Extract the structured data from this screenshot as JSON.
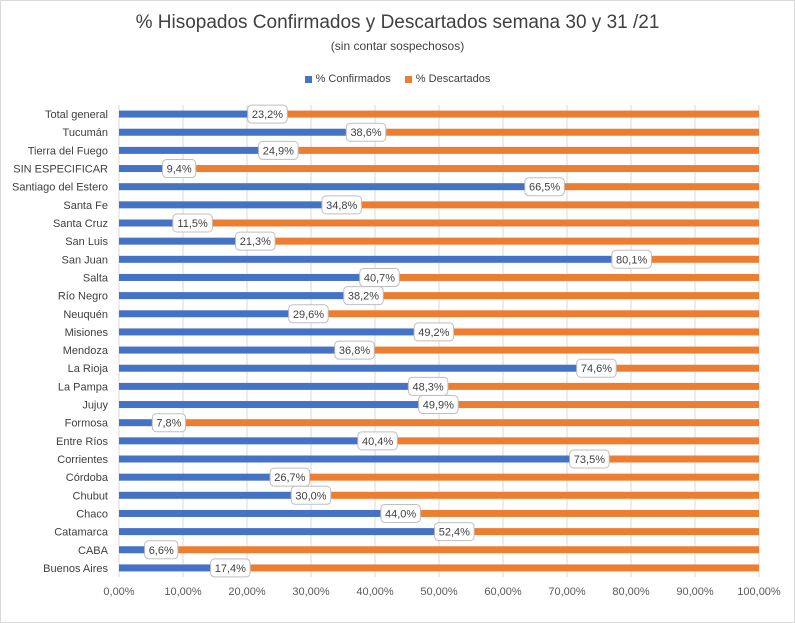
{
  "chart_data": {
    "type": "bar",
    "orientation": "horizontal",
    "stacked": true,
    "title": "% Hisopados  Confirmados  y  Descartados  semana  30 y 31 /21",
    "subtitle": "(sin contar sospechosos)",
    "legend_position": "top",
    "xlim": [
      0,
      100
    ],
    "xticks": [
      "0,00%",
      "10,00%",
      "20,00%",
      "30,00%",
      "40,00%",
      "50,00%",
      "60,00%",
      "70,00%",
      "80,00%",
      "90,00%",
      "100,00%"
    ],
    "grid": true,
    "colors": {
      "confirmados": "#4472c4",
      "descartados": "#ed7d31",
      "grid": "#d9d9d9"
    },
    "categories": [
      "Total general",
      "Tucumán",
      "Tierra del Fuego",
      "SIN ESPECIFICAR",
      "Santiago del Estero",
      "Santa Fe",
      "Santa Cruz",
      "San Luis",
      "San Juan",
      "Salta",
      "Río Negro",
      "Neuquén",
      "Misiones",
      "Mendoza",
      "La Rioja",
      "La Pampa",
      "Jujuy",
      "Formosa",
      "Entre Ríos",
      "Corrientes",
      "Córdoba",
      "Chubut",
      "Chaco",
      "Catamarca",
      "CABA",
      "Buenos Aires"
    ],
    "series": [
      {
        "name": "% Confirmados",
        "values": [
          23.2,
          38.6,
          24.9,
          9.4,
          66.5,
          34.8,
          11.5,
          21.3,
          80.1,
          40.7,
          38.2,
          29.6,
          49.2,
          36.8,
          74.6,
          48.3,
          49.9,
          7.8,
          40.4,
          73.5,
          26.7,
          30.0,
          44.0,
          52.4,
          6.6,
          17.4
        ],
        "labels": [
          "23,2%",
          "38,6%",
          "24,9%",
          "9,4%",
          "66,5%",
          "34,8%",
          "11,5%",
          "21,3%",
          "80,1%",
          "40,7%",
          "38,2%",
          "29,6%",
          "49,2%",
          "36,8%",
          "74,6%",
          "48,3%",
          "49,9%",
          "7,8%",
          "40,4%",
          "73,5%",
          "26,7%",
          "30,0%",
          "44,0%",
          "52,4%",
          "6,6%",
          "17,4%"
        ]
      },
      {
        "name": "% Descartados",
        "values": [
          76.8,
          61.4,
          75.1,
          90.6,
          33.5,
          65.2,
          88.5,
          78.7,
          19.9,
          59.3,
          61.8,
          70.4,
          50.8,
          63.2,
          25.4,
          51.7,
          50.1,
          92.2,
          59.6,
          26.5,
          73.3,
          70.0,
          56.0,
          47.6,
          93.4,
          82.6
        ]
      }
    ]
  }
}
